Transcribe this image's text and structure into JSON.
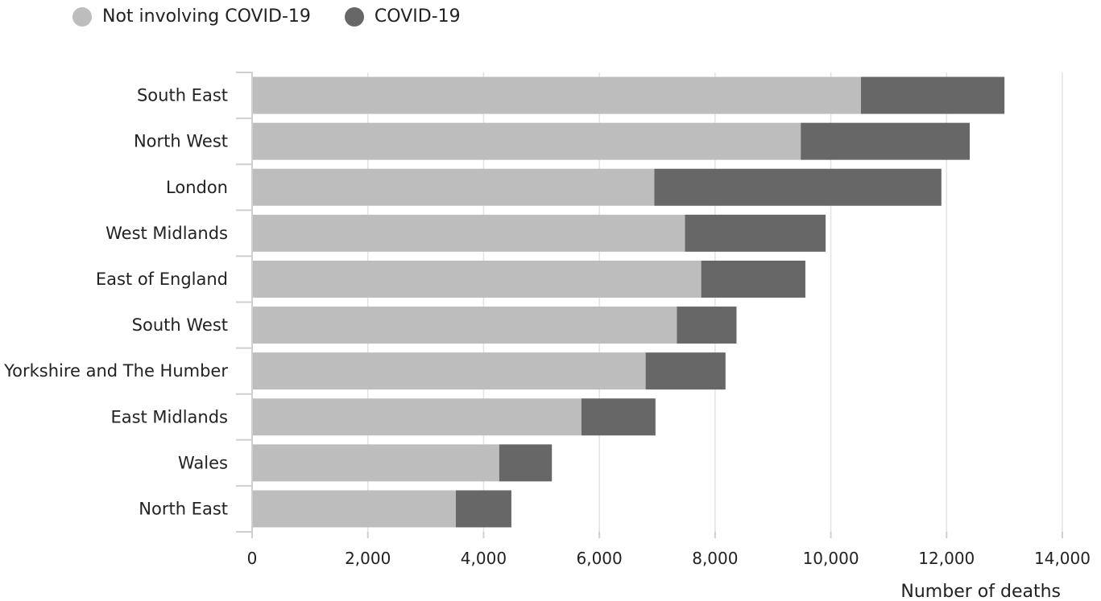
{
  "chart_data": {
    "type": "bar",
    "orientation": "horizontal",
    "stacked": true,
    "categories": [
      "South East",
      "North West",
      "London",
      "West Midlands",
      "East of England",
      "South West",
      "Yorkshire and The Humber",
      "East Midlands",
      "Wales",
      "North East"
    ],
    "series": [
      {
        "name": "Not involving COVID-19",
        "color": "#bdbdbd",
        "values": [
          10520,
          9480,
          6950,
          7480,
          7760,
          7340,
          6800,
          5690,
          4270,
          3520
        ]
      },
      {
        "name": "COVID-19",
        "color": "#676767",
        "values": [
          2480,
          2920,
          4960,
          2430,
          1800,
          1030,
          1380,
          1280,
          910,
          960
        ]
      }
    ],
    "xlim": [
      0,
      14000
    ],
    "xticks": [
      0,
      2000,
      4000,
      6000,
      8000,
      10000,
      12000,
      14000
    ],
    "xtick_labels": [
      "0",
      "2,000",
      "4,000",
      "6,000",
      "8,000",
      "10,000",
      "12,000",
      "14,000"
    ],
    "xlabel": "Number of deaths",
    "grid": "vertical",
    "legend_position": "top-left"
  }
}
